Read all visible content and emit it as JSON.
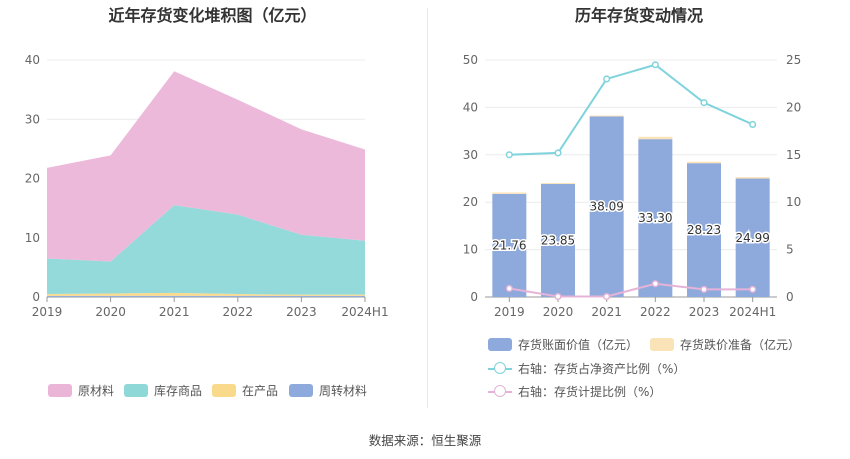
{
  "source_label": "数据来源：恒生聚源",
  "chart_data": [
    {
      "type": "area",
      "title": "近年存货变化堆积图（亿元）",
      "categories": [
        "2019",
        "2020",
        "2021",
        "2022",
        "2023",
        "2024H1"
      ],
      "ylim": [
        0,
        40
      ],
      "yticks": [
        0,
        10,
        20,
        30,
        40
      ],
      "stacked": true,
      "legend_position": "bottom",
      "series": [
        {
          "name": "周转材料",
          "values": [
            0.2,
            0.2,
            0.2,
            0.2,
            0.2,
            0.2
          ],
          "color": "#8eaadc"
        },
        {
          "name": "在产品",
          "values": [
            0.3,
            0.4,
            0.5,
            0.3,
            0.2,
            0.2
          ],
          "color": "#f9d98a"
        },
        {
          "name": "库存商品",
          "values": [
            6.0,
            5.4,
            14.8,
            13.4,
            10.1,
            9.1
          ],
          "color": "#8fd8d8"
        },
        {
          "name": "原材料",
          "values": [
            15.3,
            17.9,
            22.6,
            19.4,
            17.8,
            15.4
          ],
          "color": "#ebb5d8"
        }
      ]
    },
    {
      "type": "bar",
      "title": "历年存货变动情况",
      "categories": [
        "2019",
        "2020",
        "2021",
        "2022",
        "2023",
        "2024H1"
      ],
      "ylim": [
        0,
        50
      ],
      "yticks": [
        0,
        10,
        20,
        30,
        40,
        50
      ],
      "y2lim": [
        0,
        25
      ],
      "y2ticks": [
        0,
        5,
        10,
        15,
        20,
        25
      ],
      "legend_position": "bottom",
      "series": [
        {
          "name": "存货账面价值（亿元）",
          "type": "bar",
          "axis": "left",
          "values": [
            21.76,
            23.85,
            38.09,
            33.3,
            28.23,
            24.99
          ],
          "labels": [
            "21.76",
            "23.85",
            "38.09",
            "33.30",
            "28.23",
            "24.99"
          ],
          "color": "#8eaadc"
        },
        {
          "name": "存货跌价准备（亿元）",
          "type": "bar",
          "axis": "left",
          "values": [
            0.3,
            0.2,
            0.2,
            0.5,
            0.3,
            0.3
          ],
          "color": "#fbe3b8"
        },
        {
          "name": "右轴：存货占净资产比例（%）",
          "type": "line",
          "axis": "right",
          "values": [
            15.0,
            15.2,
            23.0,
            24.5,
            20.5,
            18.2
          ],
          "color": "#7fd3dc"
        },
        {
          "name": "右轴：存货计提比例（%）",
          "type": "line",
          "axis": "right",
          "values": [
            0.9,
            0.05,
            0.05,
            1.4,
            0.8,
            0.8
          ],
          "color": "#e5b3d8"
        }
      ]
    }
  ]
}
